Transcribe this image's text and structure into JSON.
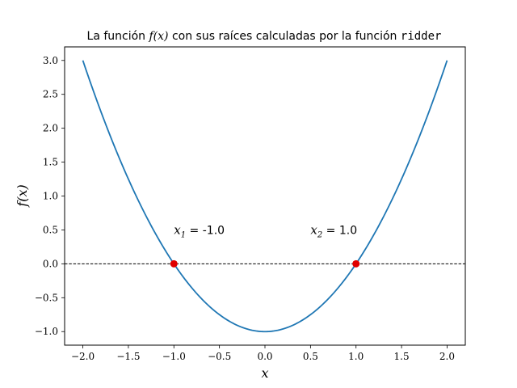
{
  "chart_data": {
    "type": "line",
    "title": {
      "prefix": "La función ",
      "math": "f(x)",
      "middle": " con sus raíces calculadas por la función ",
      "code": "ridder"
    },
    "xlabel": "x",
    "ylabel": "f(x)",
    "xlim": [
      -2.2,
      2.2
    ],
    "ylim": [
      -1.2,
      3.2
    ],
    "x_ticks": [
      -2.0,
      -1.5,
      -1.0,
      -0.5,
      0.0,
      0.5,
      1.0,
      1.5,
      2.0
    ],
    "y_ticks": [
      -1.0,
      -0.5,
      0.0,
      0.5,
      1.0,
      1.5,
      2.0,
      2.5,
      3.0
    ],
    "x_tick_labels": [
      "−2.0",
      "−1.5",
      "−1.0",
      "−0.5",
      "0.0",
      "0.5",
      "1.0",
      "1.5",
      "2.0"
    ],
    "y_tick_labels": [
      "−1.0",
      "−0.5",
      "0.0",
      "0.5",
      "1.0",
      "1.5",
      "2.0",
      "2.5",
      "3.0"
    ],
    "grid": false,
    "series": [
      {
        "function": "x^2 - 1",
        "x_range": [
          -2.0,
          2.0
        ],
        "color": "#1f77b4",
        "points": [
          [
            -2.0,
            3.0
          ],
          [
            -1.75,
            2.0625
          ],
          [
            -1.5,
            1.25
          ],
          [
            -1.25,
            0.5625
          ],
          [
            -1.0,
            0.0
          ],
          [
            -0.75,
            -0.4375
          ],
          [
            -0.5,
            -0.75
          ],
          [
            -0.25,
            -0.9375
          ],
          [
            0.0,
            -1.0
          ],
          [
            0.25,
            -0.9375
          ],
          [
            0.5,
            -0.75
          ],
          [
            0.75,
            -0.4375
          ],
          [
            1.0,
            0.0
          ],
          [
            1.25,
            0.5625
          ],
          [
            1.5,
            1.25
          ],
          [
            1.75,
            2.0625
          ],
          [
            2.0,
            3.0
          ]
        ]
      }
    ],
    "reference_line": {
      "y": 0.0,
      "style": "dashed",
      "color": "#000000"
    },
    "roots": [
      {
        "x": -1.0,
        "y": 0.0,
        "color": "#e00000"
      },
      {
        "x": 1.0,
        "y": 0.0,
        "color": "#e00000"
      }
    ],
    "annotations": [
      {
        "x": -1.0,
        "y": 0.5,
        "var": "x",
        "sub": "1",
        "text": " = -1.0"
      },
      {
        "x": 0.5,
        "y": 0.5,
        "var": "x",
        "sub": "2",
        "text": " = 1.0"
      }
    ]
  }
}
